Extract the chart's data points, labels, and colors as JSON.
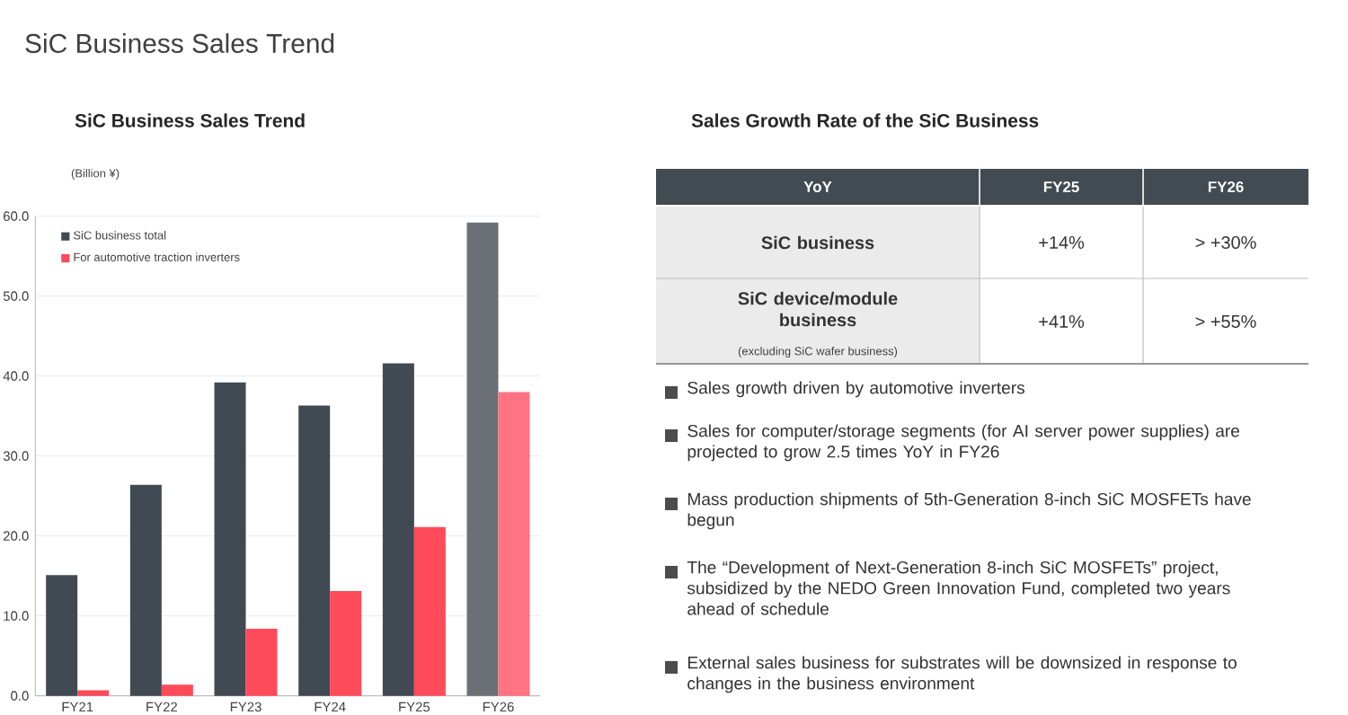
{
  "chart_data": [
    {
      "type": "bar",
      "title": "SiC Business Sales Trend",
      "subtitle": "SiC Business Sales Trend",
      "ylabel": "(Billion ¥)",
      "categories": [
        "FY21",
        "FY22",
        "FY23",
        "FY24",
        "FY25",
        "FY26"
      ],
      "series": [
        {
          "name": "SiC business total",
          "color": "#414a52",
          "colors": [
            "#414a52",
            "#414a52",
            "#414a52",
            "#414a52",
            "#414a52",
            "#6a7076"
          ],
          "values": [
            15.1,
            26.4,
            39.2,
            36.3,
            41.6,
            59.2
          ]
        },
        {
          "name": "For automotive traction inverters",
          "color": "#ff4a5a",
          "colors": [
            "#ff4a5a",
            "#ff4a5a",
            "#ff4a5a",
            "#ff4a5a",
            "#ff4a5a",
            "#ff7382"
          ],
          "values": [
            0.7,
            1.4,
            8.4,
            13.1,
            21.1,
            38.0
          ]
        }
      ],
      "ylim": [
        0,
        60
      ],
      "yticks": [
        {
          "value": 0,
          "label": "0.0"
        },
        {
          "value": 10,
          "label": "10.0"
        },
        {
          "value": 20,
          "label": "20.0"
        },
        {
          "value": 30,
          "label": "30.0"
        },
        {
          "value": 40,
          "label": "40.0"
        },
        {
          "value": 50,
          "label": "50.0"
        },
        {
          "value": 60,
          "label": "60.0"
        }
      ],
      "grid": "y",
      "legend": "top left"
    },
    {
      "type": "other",
      "title": "Sales Growth Rate of the SiC Business",
      "annotations": [
        "YoY",
        "FY25",
        "FY26",
        "SiC business",
        "+14%",
        "> +30%",
        "SiC device/module business",
        "(excluding SiC wafer business)",
        "+41%",
        "> +55%",
        "Sales growth driven by automotive inverters",
        "Sales for computer/storage segments (for AI server power supplies) are projected to grow 2.5 times YoY in FY26",
        "Mass production shipments of 5th-Generation 8-inch SiC MOSFETs have begun",
        "The “Development of Next-Generation 8-inch SiC MOSFETs” project, subsidized by the NEDO Green Innovation Fund, completed two years ahead of schedule",
        "External sales business for substrates will be downsized in response to changes in the business environment"
      ]
    }
  ]
}
